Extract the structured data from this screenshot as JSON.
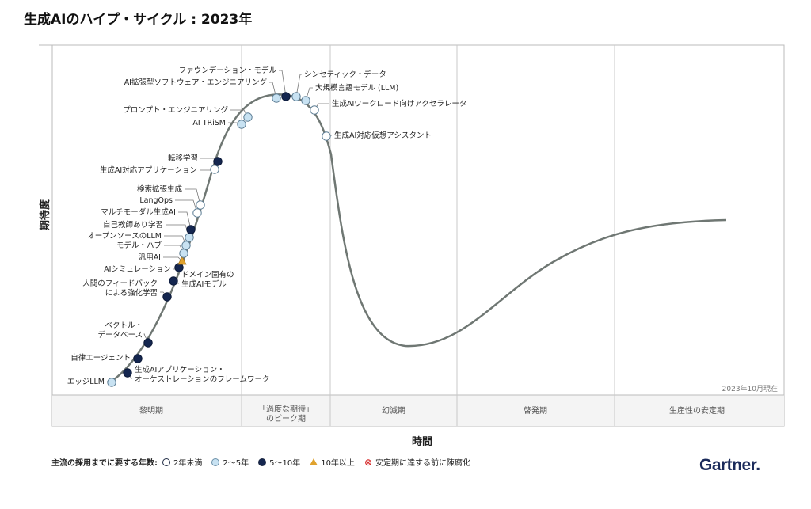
{
  "title": "生成AIのハイプ・サイクル : 2023年",
  "chart_data": {
    "type": "scatter",
    "xlabel": "時間",
    "ylabel": "期待度",
    "note": "2023年10月現在",
    "phases": [
      "黎明期",
      "「過度な期待」\nのピーク期",
      "幻滅期",
      "啓発期",
      "生産性の安定期"
    ],
    "series": [
      {
        "name": "2年未満",
        "color": "#ffffff"
      },
      {
        "name": "2～5年",
        "color": "#c8e2f2"
      },
      {
        "name": "5～10年",
        "color": "#14264f"
      },
      {
        "name": "10年以上",
        "color": "#e0a22e"
      },
      {
        "name": "安定期に達する前に陳腐化",
        "color": "#d62a2a"
      }
    ],
    "points": [
      {
        "label": "エッジLLM",
        "series": "2～5年"
      },
      {
        "label": "生成AIアプリケーション・\nオーケストレーションのフレームワーク",
        "series": "5～10年"
      },
      {
        "label": "自律エージェント",
        "series": "5～10年"
      },
      {
        "label": "ベクトル・\nデータベース",
        "series": "5～10年"
      },
      {
        "label": "人間のフィードバック\nによる強化学習",
        "series": "5～10年"
      },
      {
        "label": "ドメイン固有の\n生成AIモデル",
        "series": "5～10年"
      },
      {
        "label": "AIシミュレーション",
        "series": "5～10年"
      },
      {
        "label": "汎用AI",
        "series": "10年以上"
      },
      {
        "label": "モデル・ハブ",
        "series": "2～5年"
      },
      {
        "label": "オープンソースのLLM",
        "series": "2～5年"
      },
      {
        "label": "自己教師あり学習",
        "series": "2～5年"
      },
      {
        "label": "マルチモーダル生成AI",
        "series": "5～10年"
      },
      {
        "label": "LangOps",
        "series": "2年未満"
      },
      {
        "label": "検索拡張生成",
        "series": "2年未満"
      },
      {
        "label": "生成AI対応アプリケーション",
        "series": "2年未満"
      },
      {
        "label": "転移学習",
        "series": "5～10年"
      },
      {
        "label": "AI TRiSM",
        "series": "2～5年"
      },
      {
        "label": "プロンプト・エンジニアリング",
        "series": "2～5年"
      },
      {
        "label": "AI拡張型ソフトウェア・エンジニアリング",
        "series": "2～5年"
      },
      {
        "label": "ファウンデーション・モデル",
        "series": "5～10年"
      },
      {
        "label": "シンセティック・データ",
        "series": "2～5年"
      },
      {
        "label": "大規模言語モデル (LLM)",
        "series": "2～5年"
      },
      {
        "label": "生成AIワークロード向けアクセラレータ",
        "series": "2年未満"
      },
      {
        "label": "生成AI対応仮想アシスタント",
        "series": "2年未満"
      }
    ]
  },
  "legend": {
    "heading": "主流の採用までに要する年数:",
    "items": [
      "2年未満",
      "2～5年",
      "5～10年",
      "10年以上",
      "安定期に達する前に陳腐化"
    ]
  },
  "brand": "Gartner."
}
